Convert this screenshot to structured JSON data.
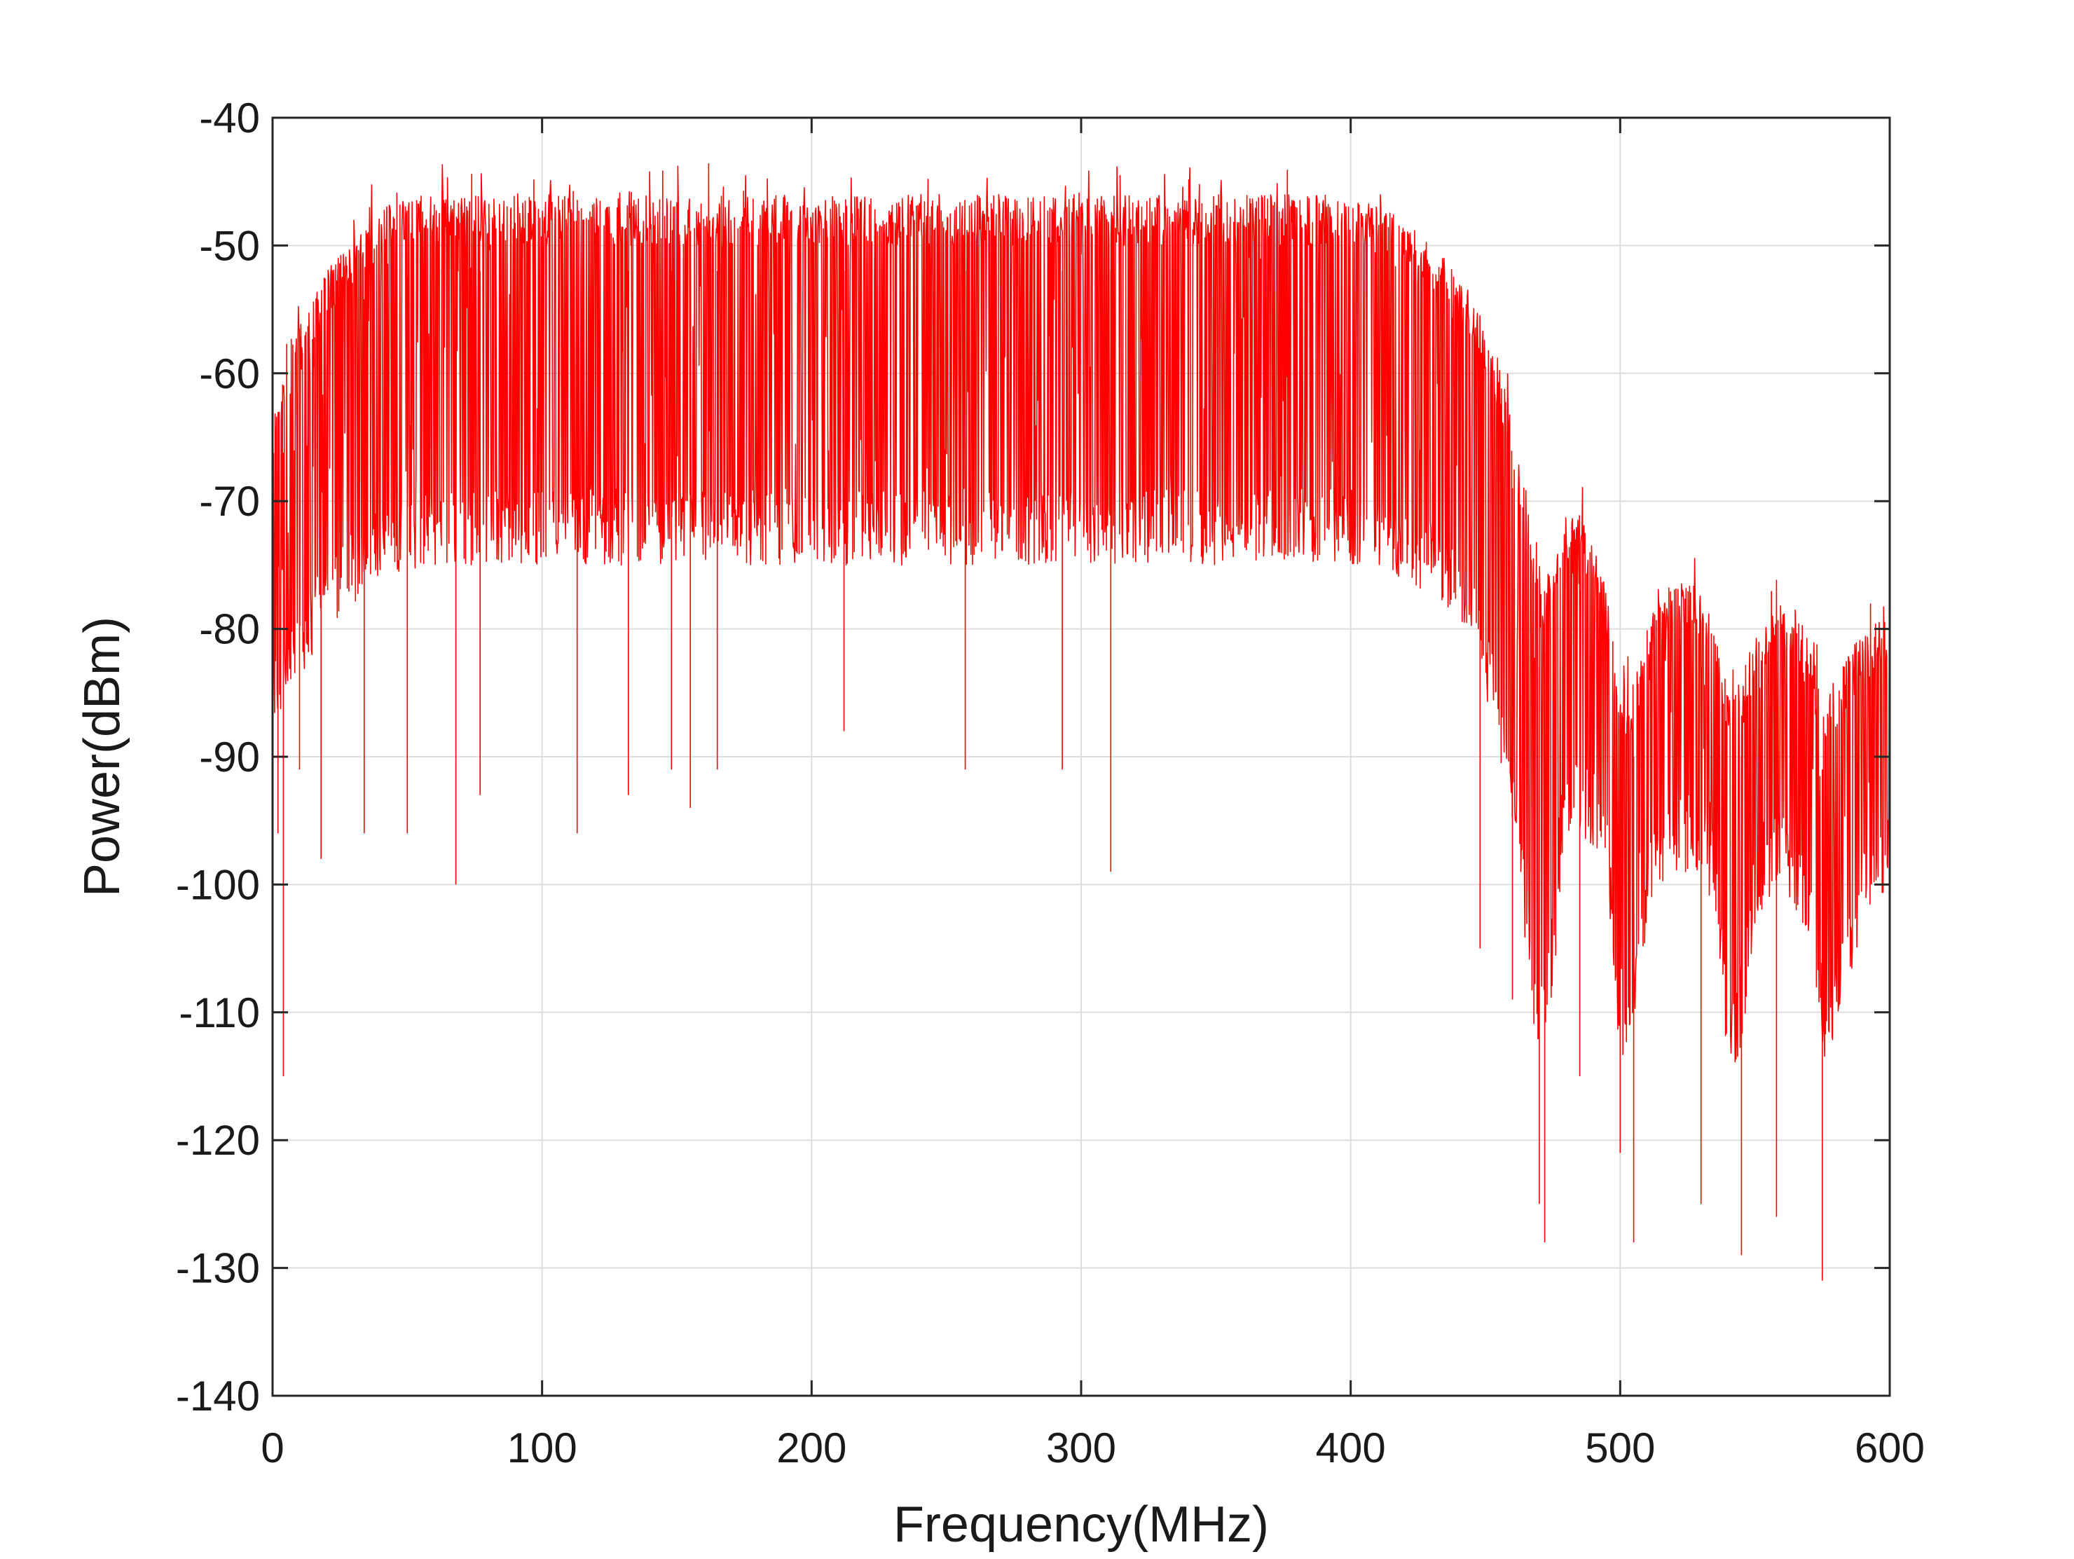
{
  "chart_data": {
    "type": "line",
    "title": "",
    "xlabel": "Frequency(MHz)",
    "ylabel": "Power(dBm)",
    "xlim": [
      0,
      600
    ],
    "ylim": [
      -140,
      -40
    ],
    "xticks": [
      0,
      100,
      200,
      300,
      400,
      500,
      600
    ],
    "yticks": [
      -40,
      -50,
      -60,
      -70,
      -80,
      -90,
      -100,
      -110,
      -120,
      -130,
      -140
    ],
    "grid": true,
    "series": [
      {
        "color": "#ff0000",
        "envelope_upper": [
          [
            0,
            -63
          ],
          [
            10,
            -56
          ],
          [
            20,
            -52
          ],
          [
            30,
            -49
          ],
          [
            40,
            -47
          ],
          [
            60,
            -46
          ],
          [
            100,
            -46
          ],
          [
            200,
            -46
          ],
          [
            300,
            -46
          ],
          [
            350,
            -46
          ],
          [
            400,
            -46
          ],
          [
            415,
            -47
          ],
          [
            425,
            -49
          ],
          [
            435,
            -51
          ],
          [
            445,
            -54
          ],
          [
            455,
            -59
          ],
          [
            460,
            -63
          ],
          [
            465,
            -69
          ],
          [
            470,
            -77
          ],
          [
            475,
            -74
          ],
          [
            480,
            -71
          ],
          [
            485,
            -71
          ],
          [
            490,
            -73
          ],
          [
            495,
            -77
          ],
          [
            500,
            -85
          ],
          [
            505,
            -84
          ],
          [
            510,
            -80
          ],
          [
            515,
            -78
          ],
          [
            520,
            -76
          ],
          [
            525,
            -76
          ],
          [
            530,
            -77
          ],
          [
            535,
            -80
          ],
          [
            540,
            -85
          ],
          [
            545,
            -84
          ],
          [
            550,
            -80
          ],
          [
            555,
            -79
          ],
          [
            560,
            -78
          ],
          [
            565,
            -79
          ],
          [
            570,
            -81
          ],
          [
            575,
            -85
          ],
          [
            580,
            -84
          ],
          [
            585,
            -82
          ],
          [
            590,
            -80
          ],
          [
            600,
            -79
          ]
        ],
        "envelope_lower": [
          [
            0,
            -88
          ],
          [
            10,
            -84
          ],
          [
            20,
            -80
          ],
          [
            30,
            -78
          ],
          [
            40,
            -76
          ],
          [
            60,
            -75
          ],
          [
            100,
            -75
          ],
          [
            200,
            -75
          ],
          [
            300,
            -75
          ],
          [
            400,
            -75
          ],
          [
            420,
            -76
          ],
          [
            440,
            -79
          ],
          [
            450,
            -85
          ],
          [
            460,
            -95
          ],
          [
            470,
            -115
          ],
          [
            475,
            -108
          ],
          [
            480,
            -97
          ],
          [
            485,
            -96
          ],
          [
            490,
            -97
          ],
          [
            495,
            -100
          ],
          [
            500,
            -115
          ],
          [
            505,
            -112
          ],
          [
            510,
            -103
          ],
          [
            520,
            -99
          ],
          [
            530,
            -99
          ],
          [
            535,
            -102
          ],
          [
            540,
            -115
          ],
          [
            545,
            -113
          ],
          [
            550,
            -103
          ],
          [
            560,
            -100
          ],
          [
            570,
            -104
          ],
          [
            575,
            -115
          ],
          [
            580,
            -112
          ],
          [
            590,
            -103
          ],
          [
            600,
            -100
          ]
        ],
        "deep_dips": [
          [
            2,
            -96
          ],
          [
            4,
            -115
          ],
          [
            10,
            -91
          ],
          [
            18,
            -98
          ],
          [
            34,
            -96
          ],
          [
            50,
            -96
          ],
          [
            68,
            -100
          ],
          [
            77,
            -93
          ],
          [
            113,
            -96
          ],
          [
            132,
            -93
          ],
          [
            148,
            -91
          ],
          [
            155,
            -94
          ],
          [
            165,
            -91
          ],
          [
            212,
            -88
          ],
          [
            257,
            -91
          ],
          [
            293,
            -91
          ],
          [
            311,
            -99
          ],
          [
            448,
            -105
          ],
          [
            460,
            -109
          ],
          [
            470,
            -125
          ],
          [
            472,
            -128
          ],
          [
            485,
            -115
          ],
          [
            500,
            -121
          ],
          [
            505,
            -128
          ],
          [
            530,
            -125
          ],
          [
            545,
            -129
          ],
          [
            558,
            -126
          ],
          [
            575,
            -131
          ]
        ]
      }
    ]
  }
}
